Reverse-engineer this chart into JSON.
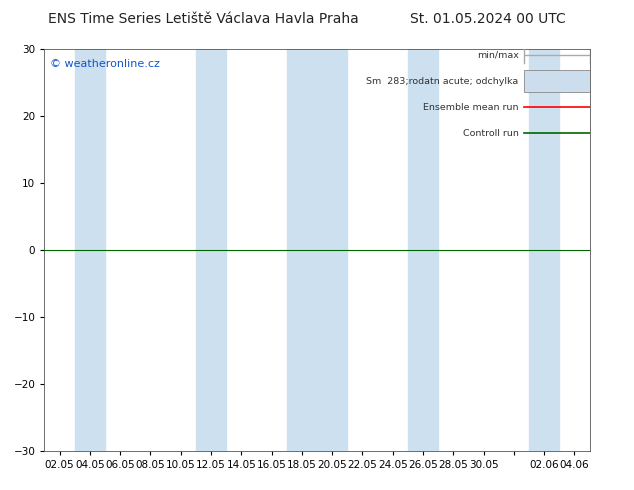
{
  "title_left": "ENS Time Series Letiště Václava Havla Praha",
  "title_right": "St. 01.05.2024 00 UTC",
  "watermark": "© weatheronline.cz",
  "ylim": [
    -30,
    30
  ],
  "yticks": [
    -30,
    -20,
    -10,
    0,
    10,
    20,
    30
  ],
  "xtick_labels": [
    "02.05",
    "04.05",
    "06.05",
    "08.05",
    "10.05",
    "12.05",
    "14.05",
    "16.05",
    "18.05",
    "20.05",
    "22.05",
    "24.05",
    "26.05",
    "28.05",
    "30.05",
    "",
    "02.06",
    "04.06"
  ],
  "band_color": "#cce0f0",
  "line_y0_color": "#006600",
  "background_color": "#ffffff",
  "legend_minmax_color": "#aaaaaa",
  "legend_sm_color": "#ccddee",
  "legend_ensemble_color": "#ff0000",
  "legend_control_color": "#006600",
  "title_fontsize": 10,
  "tick_fontsize": 7.5,
  "watermark_color": "#1155cc",
  "watermark_fontsize": 8
}
